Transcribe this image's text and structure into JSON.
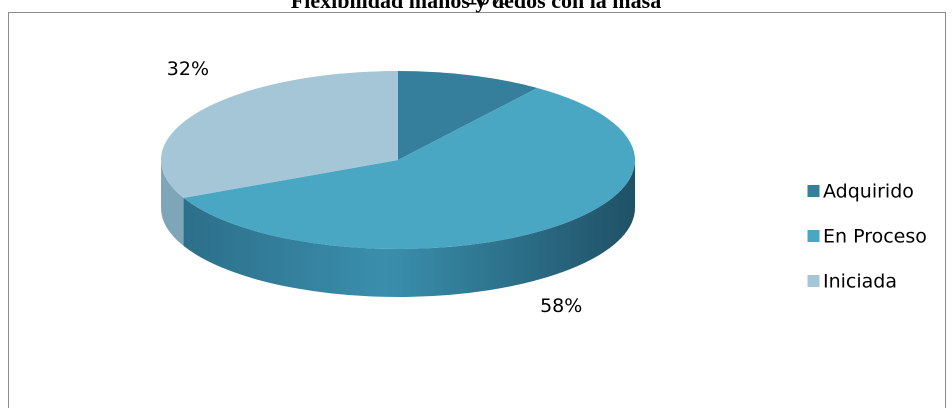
{
  "chart_data": {
    "type": "pie",
    "title": "Flexibilidad manos y dedos con la masa",
    "categories": [
      "Adquirido",
      "En Proceso",
      "Iniciada"
    ],
    "values": [
      10,
      58,
      32
    ],
    "labels": [
      "10%",
      "58%",
      "32%"
    ],
    "colors": {
      "Adquirido": "#367f9c",
      "En Proceso": "#4aa7c4",
      "Iniciada": "#a4c6d6"
    },
    "side_colors": {
      "Adquirido": "#2b6a84",
      "En Proceso": "#2f7e99",
      "Iniciada": "#7fa6b8"
    },
    "style": "3d",
    "legend": {
      "position": "right"
    }
  }
}
